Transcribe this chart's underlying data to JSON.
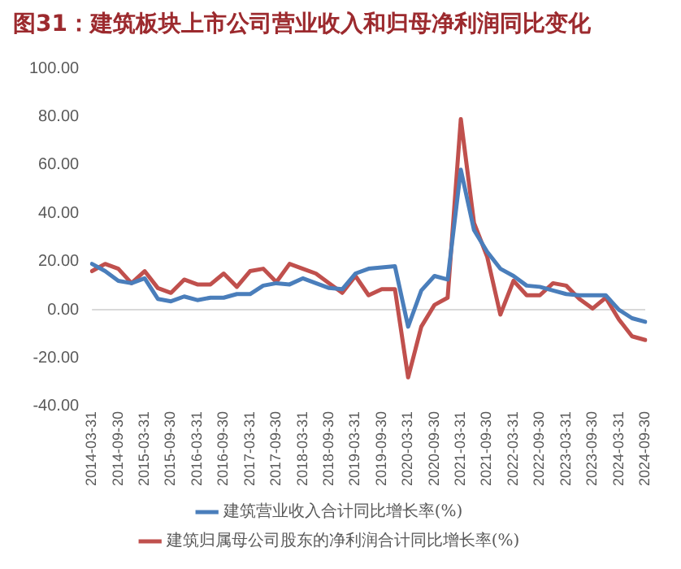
{
  "chart_data": {
    "type": "line",
    "title": "图31：建筑板块上市公司营业收入和归母净利润同比变化",
    "categories": [
      "2014-03-31",
      null,
      "2014-09-30",
      null,
      "2015-03-31",
      null,
      "2015-09-30",
      null,
      "2016-03-31",
      null,
      "2016-09-30",
      null,
      "2017-03-31",
      null,
      "2017-09-30",
      null,
      "2018-03-31",
      null,
      "2018-09-30",
      null,
      "2019-03-31",
      null,
      "2019-09-30",
      null,
      "2020-03-31",
      null,
      "2020-09-30",
      null,
      "2021-03-31",
      null,
      "2021-09-30",
      null,
      "2022-03-31",
      null,
      "2022-09-30",
      null,
      "2023-03-31",
      null,
      "2023-09-30",
      null,
      "2024-03-31",
      null,
      "2024-09-30"
    ],
    "series": [
      {
        "name": "建筑营业收入合计同比增长率(%)",
        "color": "#4a7ebb",
        "values": [
          19,
          16,
          12,
          11,
          13,
          4.5,
          3.5,
          5.5,
          4,
          5,
          5,
          6.5,
          6.5,
          10,
          11,
          10.5,
          13,
          11,
          9,
          8.5,
          15,
          17,
          17.5,
          18,
          -7,
          8,
          14,
          12.5,
          58,
          33,
          24,
          17,
          14,
          10,
          9.5,
          8,
          6.5,
          6,
          6,
          6,
          0,
          -3.5,
          -5
        ]
      },
      {
        "name": "建筑归属母公司股东的净利润合计同比增长率(%)",
        "color": "#c0504d",
        "values": [
          16,
          19,
          17,
          11,
          16,
          9,
          7,
          12.5,
          10.5,
          10.5,
          15,
          9.5,
          16,
          17,
          11.5,
          19,
          17,
          15,
          11,
          7,
          14,
          6,
          8.5,
          8.5,
          -28,
          -7,
          2,
          5,
          79,
          36,
          22,
          -2,
          12,
          6,
          6,
          11,
          10,
          4.5,
          0.5,
          5,
          -4,
          -11,
          -12.5
        ]
      }
    ],
    "ylim": [
      -40,
      100
    ],
    "yticks": [
      {
        "value": -40,
        "label": "-40.00"
      },
      {
        "value": -20,
        "label": "-20.00"
      },
      {
        "value": 0,
        "label": "0.00"
      },
      {
        "value": 20,
        "label": "20.00"
      },
      {
        "value": 40,
        "label": "40.00"
      },
      {
        "value": 60,
        "label": "60.00"
      },
      {
        "value": 80,
        "label": "80.00"
      },
      {
        "value": 100,
        "label": "100.00"
      }
    ],
    "ref_lines": [
      {
        "axis": "y",
        "value": 0,
        "color": "#d9d9d9"
      }
    ],
    "grid": false,
    "legend": "bottom",
    "marker": "none",
    "line_style": "solid"
  }
}
